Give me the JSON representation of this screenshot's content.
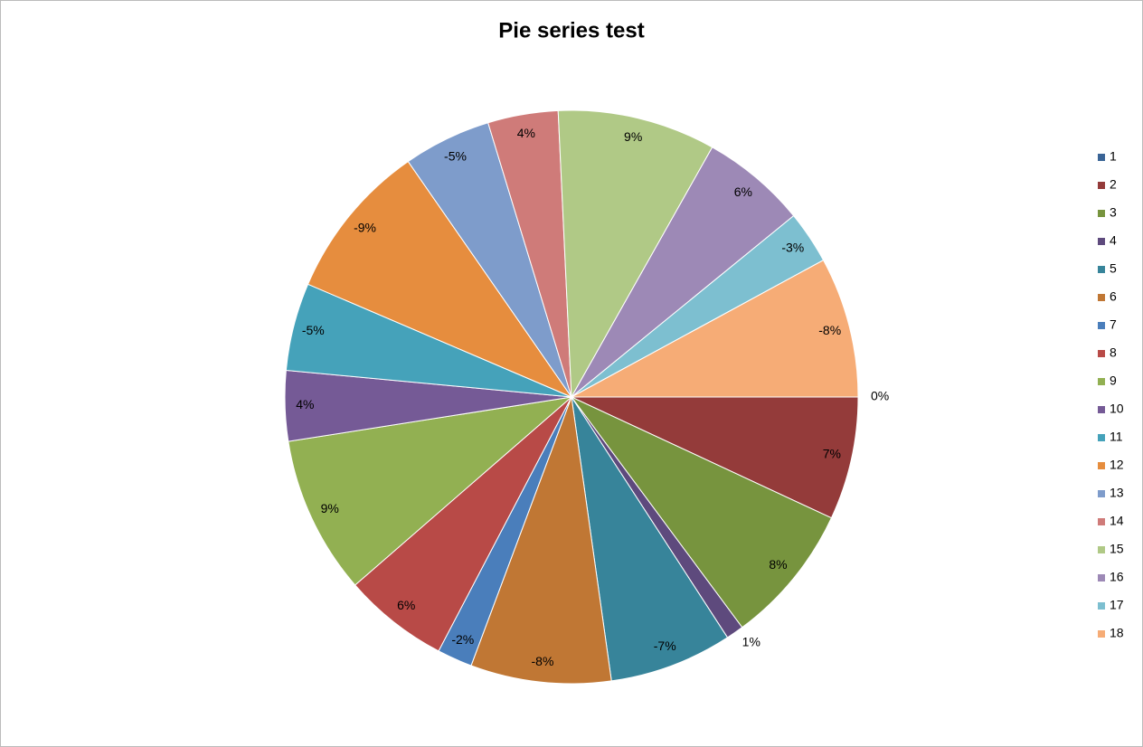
{
  "chart_data": {
    "type": "pie",
    "title": "Pie series test",
    "categories": [
      "1",
      "2",
      "3",
      "4",
      "5",
      "6",
      "7",
      "8",
      "9",
      "10",
      "11",
      "12",
      "13",
      "14",
      "15",
      "16",
      "17",
      "18"
    ],
    "values": [
      0,
      7,
      8,
      1,
      -7,
      -8,
      -2,
      6,
      9,
      4,
      -5,
      -9,
      -5,
      4,
      9,
      6,
      -3,
      -8
    ],
    "value_labels": [
      "0%",
      "7%",
      "8%",
      "1%",
      "-7%",
      "-8%",
      "-2%",
      "6%",
      "9%",
      "4%",
      "-5%",
      "-9%",
      "-5%",
      "4%",
      "9%",
      "6%",
      "-3%",
      "-8%"
    ],
    "colors": [
      "#3A6496",
      "#943B3A",
      "#77943E",
      "#5E4A7D",
      "#37849A",
      "#C07734",
      "#4A7EBB",
      "#B84A47",
      "#92B052",
      "#755A96",
      "#45A2BA",
      "#E68D3E",
      "#7E9CCB",
      "#CF7B79",
      "#B0C986",
      "#9D89B6",
      "#7DBFD0",
      "#F6AC76"
    ],
    "legend": "right"
  }
}
